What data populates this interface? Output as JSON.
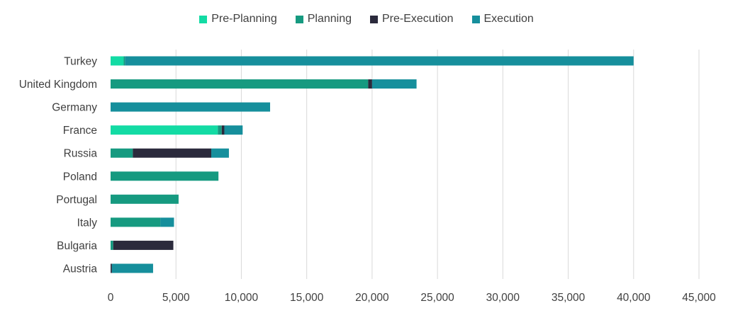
{
  "chart_data": {
    "type": "bar",
    "orientation": "horizontal",
    "stacked": true,
    "categories": [
      "Turkey",
      "United Kingdom",
      "Germany",
      "France",
      "Russia",
      "Poland",
      "Portugal",
      "Italy",
      "Bulgaria",
      "Austria"
    ],
    "series": [
      {
        "name": "Pre-Planning",
        "color": "#13dba4",
        "values": [
          1000,
          0,
          0,
          8200,
          0,
          0,
          0,
          0,
          0,
          0
        ]
      },
      {
        "name": "Planning",
        "color": "#169a80",
        "values": [
          100,
          19700,
          0,
          300,
          1700,
          8250,
          5200,
          3800,
          200,
          0
        ]
      },
      {
        "name": "Pre-Execution",
        "color": "#2b2a3c",
        "values": [
          0,
          300,
          0,
          200,
          6000,
          0,
          0,
          0,
          4600,
          100
        ]
      },
      {
        "name": "Execution",
        "color": "#168f9c",
        "values": [
          38900,
          3400,
          12200,
          1400,
          1350,
          0,
          0,
          1050,
          0,
          3150
        ]
      }
    ],
    "xlim": [
      0,
      45000
    ],
    "xticks": [
      0,
      5000,
      10000,
      15000,
      20000,
      25000,
      30000,
      35000,
      40000,
      45000
    ],
    "xtick_labels": [
      "0",
      "5,000",
      "10,000",
      "15,000",
      "20,000",
      "25,000",
      "30,000",
      "35,000",
      "40,000",
      "45,000"
    ],
    "grid": "vertical",
    "legend_position": "top"
  }
}
